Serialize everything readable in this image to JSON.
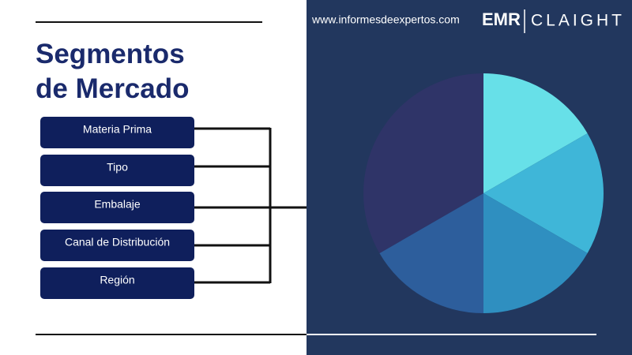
{
  "header": {
    "website": "www.informesdeexpertos.com",
    "logo_left": "EMR",
    "logo_right": "CLAIGHT"
  },
  "title": [
    "Segmentos",
    "de Mercado"
  ],
  "segments": [
    "Materia Prima",
    "Tipo",
    "Embalaje",
    "Canal de Distribución",
    "Región"
  ]
}
